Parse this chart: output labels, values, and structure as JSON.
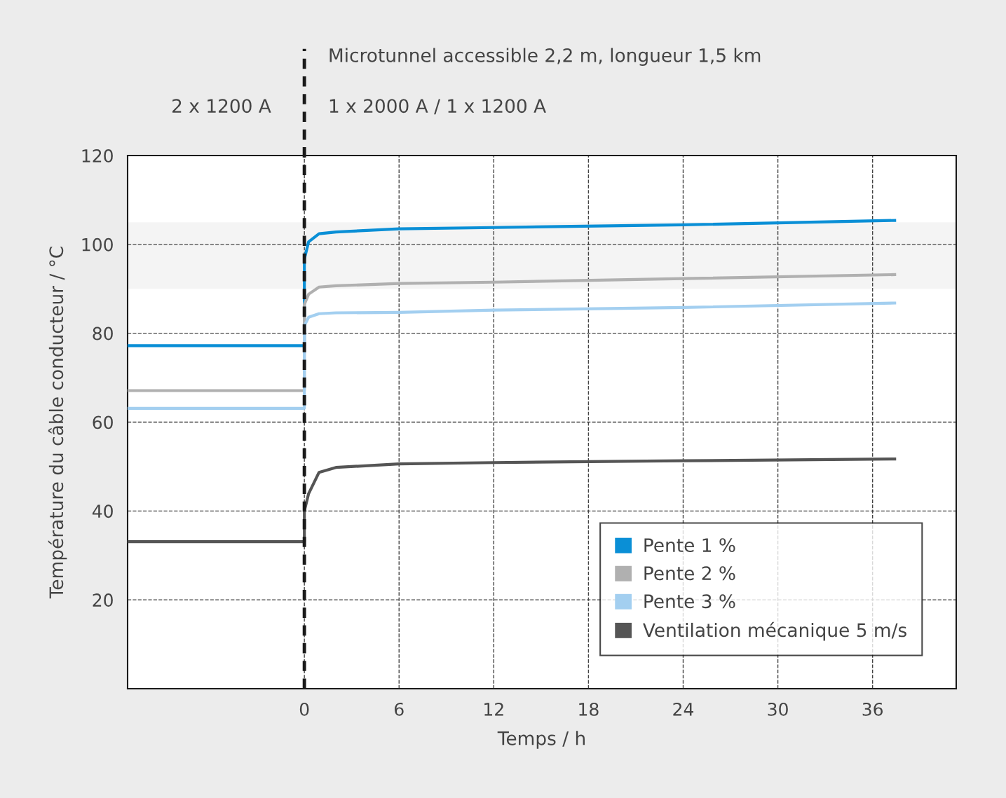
{
  "chart_data": {
    "type": "line",
    "xlabel": "Temps / h",
    "ylabel": "Température du câble conducteur / °C",
    "annotations": [
      "Microtunnel accessible 2,2 m, longueur 1,5 km",
      "2 x 1200 A",
      "1 x 2000 A / 1 x 1200 A"
    ],
    "x": [
      -11.2,
      0,
      0,
      0.27,
      0.93,
      2,
      6,
      12,
      24,
      37.4
    ],
    "series": [
      {
        "name": "Pente 1 %",
        "color": "#0a8fd6",
        "values": [
          77.2,
          77.2,
          96.7,
          100.6,
          102.4,
          102.8,
          103.5,
          103.8,
          104.4,
          105.4
        ]
      },
      {
        "name": "Pente 2 %",
        "color": "#b0b0b0",
        "values": [
          67.1,
          67.1,
          86.5,
          88.8,
          90.4,
          90.7,
          91.2,
          91.5,
          92.3,
          93.2
        ]
      },
      {
        "name": "Pente 3 %",
        "color": "#a3cff0",
        "values": [
          63.1,
          63.1,
          81.7,
          83.6,
          84.4,
          84.6,
          84.7,
          85.2,
          85.8,
          86.8
        ]
      },
      {
        "name": "Ventilation mécanique 5 m/s",
        "color": "#555555",
        "values": [
          33.1,
          33.1,
          40,
          43.9,
          48.7,
          49.8,
          50.6,
          50.9,
          51.3,
          51.7
        ]
      }
    ],
    "xlim": [
      -11.2,
      41.3
    ],
    "ylim": [
      0,
      120
    ],
    "xticks": [
      0,
      6,
      12,
      18,
      24,
      30,
      36
    ],
    "yticks": [
      20,
      40,
      60,
      80,
      100,
      120
    ],
    "ref_lines": [
      {
        "axis": "x",
        "value": 0,
        "color": "#1a1a1a",
        "line_style": "dashed"
      }
    ],
    "bands": [
      {
        "axis": "y",
        "from": 90,
        "to": 105,
        "color": "#f4f4f4"
      }
    ],
    "grid": true,
    "legend": "bottom right",
    "marker": "none",
    "line_style": "solid"
  }
}
